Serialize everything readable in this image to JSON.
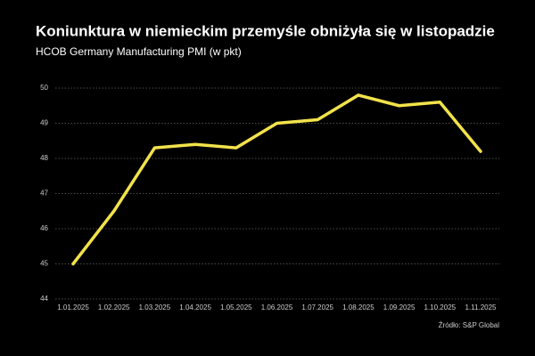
{
  "chart_data": {
    "type": "line",
    "title": "Koniunktura w niemieckim przemyśle obniżyła się w listopadzie",
    "subtitle": "HCOB Germany Manufacturing PMI (w pkt)",
    "source": "Źródło: S&P Global",
    "categories": [
      "1.01.2025",
      "1.02.2025",
      "1.03.2025",
      "1.04.2025",
      "1.05.2025",
      "1.06.2025",
      "1.07.2025",
      "1.08.2025",
      "1.09.2025",
      "1.10.2025",
      "1.11.2025"
    ],
    "series": [
      {
        "color": "#f2e24b",
        "values": [
          45.0,
          46.5,
          48.3,
          48.4,
          48.3,
          49.0,
          49.1,
          49.8,
          49.5,
          49.6,
          48.2
        ]
      }
    ],
    "ylim": [
      44,
      50
    ],
    "yticks": [
      44,
      45,
      46,
      47,
      48,
      49,
      50
    ],
    "grid": true
  }
}
